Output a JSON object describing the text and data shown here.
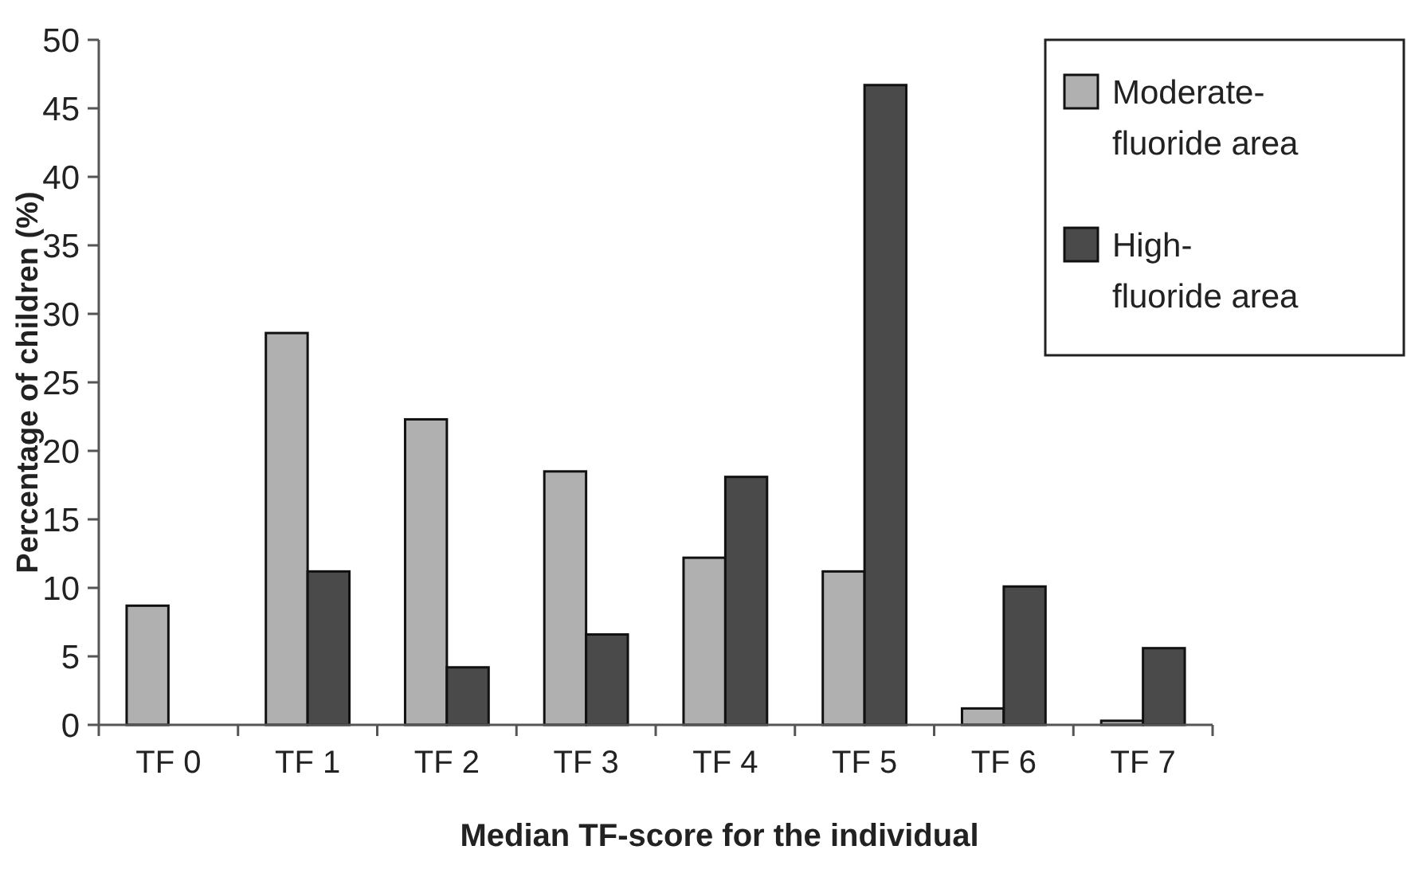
{
  "chart_data": {
    "type": "bar",
    "xlabel": "Median TF-score for the individual",
    "ylabel": "Percentage of children (%)",
    "categories": [
      "TF 0",
      "TF 1",
      "TF 2",
      "TF 3",
      "TF 4",
      "TF 5",
      "TF 6",
      "TF 7"
    ],
    "series": [
      {
        "name": "Moderate-\nfluoride area",
        "color": "#b0b0b0",
        "values": [
          8.7,
          28.6,
          22.3,
          18.5,
          12.2,
          11.2,
          1.2,
          0.3
        ]
      },
      {
        "name": "High-\nfluoride area",
        "color": "#4a4a4a",
        "values": [
          0,
          11.2,
          4.2,
          6.6,
          18.1,
          46.7,
          10.1,
          5.6
        ]
      }
    ],
    "ylim": [
      0,
      50
    ],
    "yticks": [
      0,
      5,
      10,
      15,
      20,
      25,
      30,
      35,
      40,
      45,
      50
    ],
    "legend": "top right",
    "grid": false
  }
}
